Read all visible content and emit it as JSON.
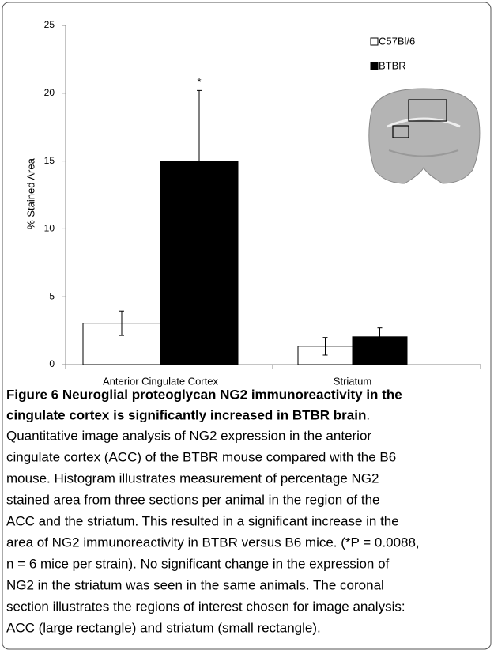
{
  "chart_data": {
    "type": "bar",
    "y_label": "% Stained Area",
    "categories": [
      "Anterior Cingulate Cortex",
      "Striatum"
    ],
    "series": [
      {
        "name": "C57Bl/6",
        "color": "#ffffff",
        "values": [
          3.05,
          1.35
        ],
        "errors": [
          0.9,
          0.65
        ]
      },
      {
        "name": "BTBR",
        "color": "#000000",
        "values": [
          14.95,
          2.05
        ],
        "errors": [
          5.25,
          0.65
        ]
      }
    ],
    "annotation": "*",
    "ylim": [
      0,
      25
    ],
    "yticks": [
      0,
      5,
      10,
      15,
      20,
      25
    ],
    "grid": false
  },
  "caption": {
    "title_lines": [
      "Figure 6 Neuroglial proteoglycan NG2 immunoreactivity in the",
      "cingulate cortex is significantly increased in BTBR brain"
    ],
    "title_end": ".",
    "body_lines": [
      "Quantitative image analysis of NG2 expression in the anterior",
      "cingulate cortex (ACC) of the BTBR mouse compared with the B6",
      "mouse. Histogram illustrates measurement of percentage NG2",
      "stained area from three sections per animal in the region of the",
      "ACC and the striatum. This resulted in a significant increase in the",
      "area of NG2 immunoreactivity in BTBR versus B6 mice. (*P = 0.0088,",
      "n = 6 mice per strain). No significant change in the expression of",
      "NG2 in the striatum was seen in the same animals. The coronal",
      "section illustrates the regions of interest chosen for image analysis:",
      "ACC (large rectangle) and striatum (small rectangle)."
    ]
  }
}
